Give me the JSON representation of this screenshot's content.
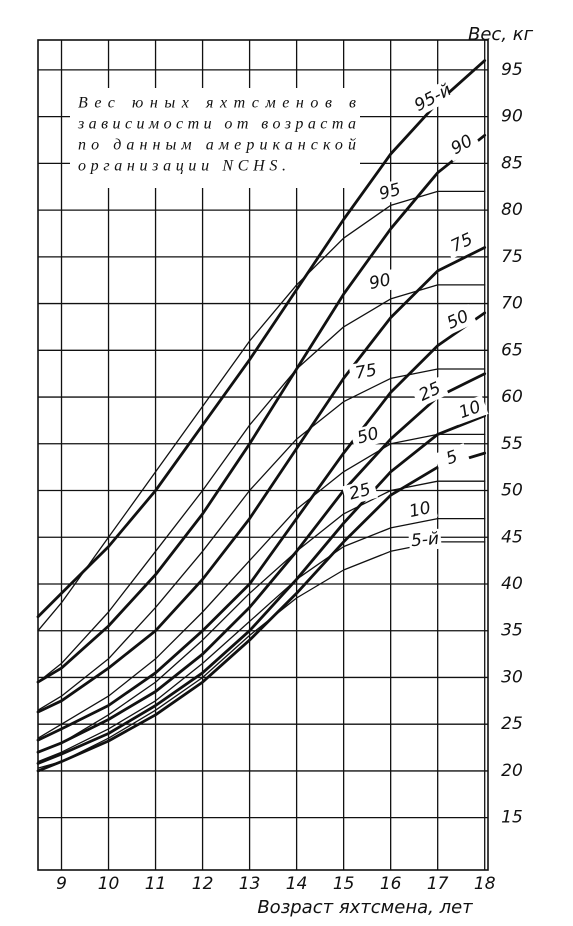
{
  "chart_data": {
    "type": "line",
    "annotation": [
      "Вес юных яхтсменов в",
      "зависимости от возраста",
      "по данным американской",
      "организации NCHS."
    ],
    "y_label": "Вес, кг",
    "x_label": "Возраст яхтсмена, лет",
    "x": [
      8.5,
      9,
      10,
      11,
      12,
      13,
      14,
      15,
      16,
      17,
      18
    ],
    "xlim": [
      8.5,
      18.07
    ],
    "xticks": [
      9,
      10,
      11,
      12,
      13,
      14,
      15,
      16,
      17,
      18
    ],
    "ylim": [
      9.4,
      98.2
    ],
    "yticks": [
      15,
      20,
      25,
      30,
      35,
      40,
      45,
      50,
      55,
      60,
      65,
      70,
      75,
      80,
      85,
      90,
      95
    ],
    "grid": true,
    "series": [
      {
        "name": "95-й",
        "color": "#111111",
        "style": "thick",
        "values": [
          36.5,
          39,
          44,
          50,
          57,
          64,
          71.5,
          79,
          86,
          91.5,
          96
        ]
      },
      {
        "name": "90",
        "color": "#111111",
        "style": "thick",
        "values": [
          29.5,
          31,
          35.5,
          41,
          47.5,
          55,
          63,
          71,
          78,
          84,
          88
        ]
      },
      {
        "name": "75",
        "color": "#111111",
        "style": "thick",
        "values": [
          26.3,
          27.5,
          31,
          35,
          40.5,
          47,
          54.5,
          62,
          68.5,
          73.5,
          76
        ]
      },
      {
        "name": "50",
        "color": "#111111",
        "style": "thick",
        "values": [
          23.3,
          24.5,
          27,
          30.5,
          35,
          40,
          47,
          54,
          60.5,
          65.5,
          69
        ]
      },
      {
        "name": "25",
        "color": "#111111",
        "style": "thick",
        "values": [
          22,
          23,
          25.5,
          28.5,
          32.5,
          37.5,
          43.5,
          50,
          55.5,
          60,
          62.5
        ]
      },
      {
        "name": "10",
        "color": "#111111",
        "style": "thick",
        "values": [
          20.8,
          21.8,
          24,
          27,
          30.5,
          35,
          40.5,
          46.5,
          52,
          56,
          58
        ]
      },
      {
        "name": "5",
        "color": "#111111",
        "style": "thick",
        "values": [
          20,
          21,
          23.2,
          26,
          29.5,
          34,
          39,
          44.5,
          49.5,
          52.5,
          54
        ]
      },
      {
        "name": "95",
        "color": "#111111",
        "style": "thin",
        "values": [
          35,
          38,
          45,
          52,
          59,
          66,
          72,
          77,
          80.5,
          82,
          82
        ]
      },
      {
        "name": "90",
        "color": "#111111",
        "style": "thin",
        "values": [
          29.5,
          31.5,
          37,
          43.5,
          50,
          57,
          63,
          67.5,
          70.5,
          72,
          72
        ]
      },
      {
        "name": "75",
        "color": "#111111",
        "style": "thin",
        "values": [
          26.5,
          28,
          32,
          37.5,
          43.5,
          50,
          55.5,
          59.5,
          62,
          63,
          63
        ]
      },
      {
        "name": "50",
        "color": "#111111",
        "style": "thin",
        "values": [
          23.5,
          25,
          28,
          32,
          37,
          42.5,
          48,
          52,
          55,
          56,
          56
        ]
      },
      {
        "name": "25",
        "color": "#111111",
        "style": "thin",
        "values": [
          22,
          23,
          26,
          29.5,
          34,
          39,
          43.5,
          47.5,
          50,
          51,
          51
        ]
      },
      {
        "name": "10",
        "color": "#111111",
        "style": "thin",
        "values": [
          21,
          22,
          24.5,
          27.5,
          31.5,
          36,
          40.5,
          44,
          46,
          47,
          47
        ]
      },
      {
        "name": "5-й",
        "color": "#111111",
        "style": "thin",
        "values": [
          20.3,
          21,
          23.5,
          26.5,
          30,
          34.5,
          38.5,
          41.5,
          43.5,
          44.5,
          44.5
        ]
      }
    ]
  }
}
